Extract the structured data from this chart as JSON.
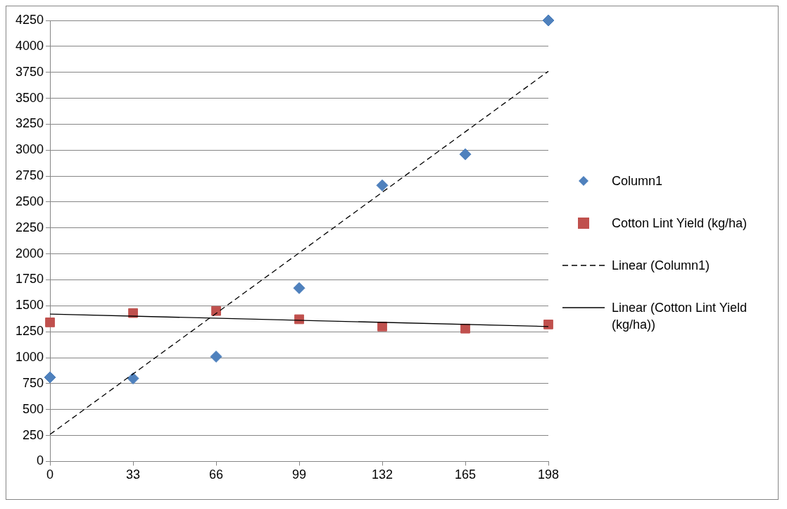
{
  "chart_data": {
    "type": "scatter",
    "xlim": [
      0,
      198
    ],
    "xticks": [
      0,
      33,
      66,
      99,
      132,
      165,
      198
    ],
    "ylim": [
      0,
      4250
    ],
    "yticks": [
      0,
      250,
      500,
      750,
      1000,
      1250,
      1500,
      1750,
      2000,
      2250,
      2500,
      2750,
      3000,
      3250,
      3500,
      3750,
      4000,
      4250
    ],
    "grid": "y",
    "legend": "right",
    "series": [
      {
        "name": "Column1",
        "type": "scatter",
        "marker": "diamond",
        "color": "#4f81bd",
        "x": [
          0,
          33,
          66,
          99,
          132,
          165,
          198
        ],
        "values": [
          810,
          800,
          1010,
          1670,
          2660,
          2960,
          4250
        ]
      },
      {
        "name": "Cotton Lint Yield (kg/ha)",
        "type": "scatter",
        "marker": "square",
        "color": "#c0504d",
        "x": [
          0,
          33,
          66,
          99,
          132,
          165,
          198
        ],
        "values": [
          1340,
          1430,
          1450,
          1370,
          1300,
          1280,
          1320
        ]
      },
      {
        "name": "Linear (Column1)",
        "type": "line",
        "marker": "none",
        "line_style": "dashed",
        "color": "#000000",
        "x": [
          0,
          198
        ],
        "values": [
          260,
          3760
        ]
      },
      {
        "name": "Linear (Cotton Lint Yield (kg/ha))",
        "type": "line",
        "marker": "none",
        "line_style": "solid",
        "color": "#000000",
        "x": [
          0,
          198
        ],
        "values": [
          1420,
          1300
        ]
      }
    ]
  }
}
